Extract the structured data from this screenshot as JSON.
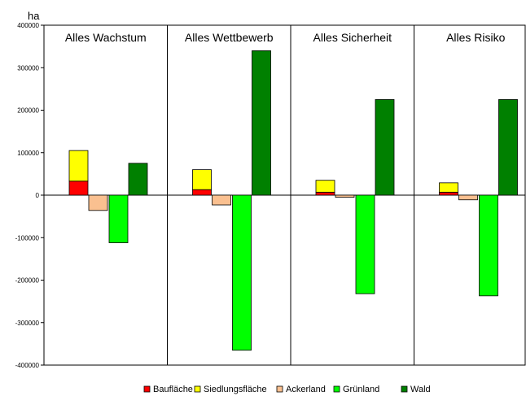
{
  "chart_data": {
    "type": "bar",
    "stacked_positive": true,
    "ylabel": "ha",
    "ylim": [
      -400000,
      400000
    ],
    "yticks": [
      -400000,
      -300000,
      -200000,
      -100000,
      0,
      100000,
      200000,
      300000,
      400000
    ],
    "ytick_labels": [
      "-400000",
      "-300000",
      "-200000",
      "-100000",
      "0",
      "100000",
      "200000",
      "300000",
      "400000"
    ],
    "grid": false,
    "legend_position": "bottom",
    "panels": [
      {
        "title": "Alles Wachstum",
        "values": {
          "Baufläche": 33000,
          "Siedlungsfläche": 72000,
          "Ackerland": -36000,
          "Grünland": -112000,
          "Wald": 75000
        }
      },
      {
        "title": "Alles Wettbewerb",
        "values": {
          "Baufläche": 13000,
          "Siedlungsfläche": 47000,
          "Ackerland": -23000,
          "Grünland": -365000,
          "Wald": 340000
        }
      },
      {
        "title": "Alles Sicherheit",
        "values": {
          "Baufläche": 7000,
          "Siedlungsfläche": 28000,
          "Ackerland": -5000,
          "Grünland": -232000,
          "Wald": 225000
        }
      },
      {
        "title": "Alles Risiko",
        "values": {
          "Baufläche": 7000,
          "Siedlungsfläche": 22000,
          "Ackerland": -11000,
          "Grünland": -237000,
          "Wald": 225000
        }
      }
    ],
    "series": [
      {
        "name": "Baufläche",
        "color": "#ff0000"
      },
      {
        "name": "Siedlungsfläche",
        "color": "#ffff00"
      },
      {
        "name": "Ackerland",
        "color": "#fac090"
      },
      {
        "name": "Grünland",
        "color": "#00ff00"
      },
      {
        "name": "Wald",
        "color": "#008000"
      }
    ]
  }
}
